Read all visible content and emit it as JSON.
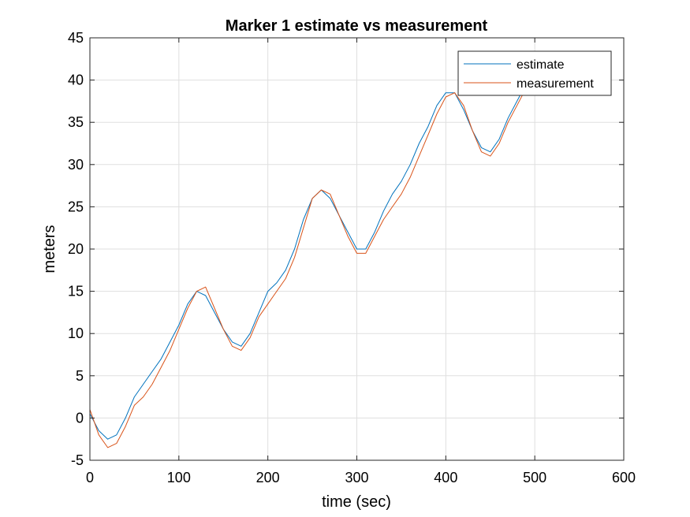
{
  "chart_data": {
    "type": "line",
    "title": "Marker 1 estimate vs measurement",
    "xlabel": "time (sec)",
    "ylabel": "meters",
    "xlim": [
      0,
      600
    ],
    "ylim": [
      -5,
      45
    ],
    "xticks": [
      "0",
      "100",
      "200",
      "300",
      "400",
      "500",
      "600"
    ],
    "yticks": [
      "-5",
      "0",
      "5",
      "10",
      "15",
      "20",
      "25",
      "30",
      "35",
      "40",
      "45"
    ],
    "grid": true,
    "legend_position": "top-right",
    "series": [
      {
        "name": "estimate",
        "color": "#0072BD",
        "x": [
          0,
          10,
          20,
          30,
          40,
          50,
          60,
          70,
          80,
          90,
          100,
          110,
          120,
          130,
          140,
          150,
          160,
          170,
          180,
          190,
          200,
          210,
          220,
          230,
          240,
          250,
          260,
          270,
          280,
          290,
          300,
          310,
          320,
          330,
          340,
          350,
          360,
          370,
          380,
          390,
          400,
          410,
          420,
          430,
          440,
          450,
          460,
          470,
          480,
          490
        ],
        "y": [
          0.5,
          -1.5,
          -2.5,
          -2.0,
          0.0,
          2.5,
          4.0,
          5.5,
          7.0,
          9.0,
          11.0,
          13.5,
          15.0,
          14.5,
          12.5,
          10.5,
          9.0,
          8.5,
          10.0,
          12.5,
          15.0,
          16.0,
          17.5,
          20.0,
          23.5,
          26.0,
          27.0,
          26.0,
          24.0,
          22.0,
          20.0,
          20.0,
          22.0,
          24.5,
          26.5,
          28.0,
          30.0,
          32.5,
          34.5,
          37.0,
          38.5,
          38.5,
          36.5,
          34.0,
          32.0,
          31.5,
          33.0,
          35.5,
          37.5,
          39.5
        ]
      },
      {
        "name": "measurement",
        "color": "#D95319",
        "x": [
          0,
          10,
          20,
          30,
          40,
          50,
          60,
          70,
          80,
          90,
          100,
          110,
          120,
          130,
          140,
          150,
          160,
          170,
          180,
          190,
          200,
          210,
          220,
          230,
          240,
          250,
          260,
          270,
          280,
          290,
          300,
          310,
          320,
          330,
          340,
          350,
          360,
          370,
          380,
          390,
          400,
          410,
          420,
          430,
          440,
          450,
          460,
          470,
          480,
          490
        ],
        "y": [
          1.0,
          -2.0,
          -3.5,
          -3.0,
          -1.0,
          1.5,
          2.5,
          4.0,
          6.0,
          8.0,
          10.5,
          13.0,
          15.0,
          15.5,
          13.0,
          10.5,
          8.5,
          8.0,
          9.5,
          12.0,
          13.5,
          15.0,
          16.5,
          19.0,
          22.5,
          26.0,
          27.0,
          26.5,
          24.0,
          21.5,
          19.5,
          19.5,
          21.5,
          23.5,
          25.0,
          26.5,
          28.5,
          31.0,
          33.5,
          36.0,
          38.0,
          38.5,
          37.0,
          34.0,
          31.5,
          31.0,
          32.5,
          35.0,
          37.0,
          39.0
        ]
      }
    ]
  }
}
